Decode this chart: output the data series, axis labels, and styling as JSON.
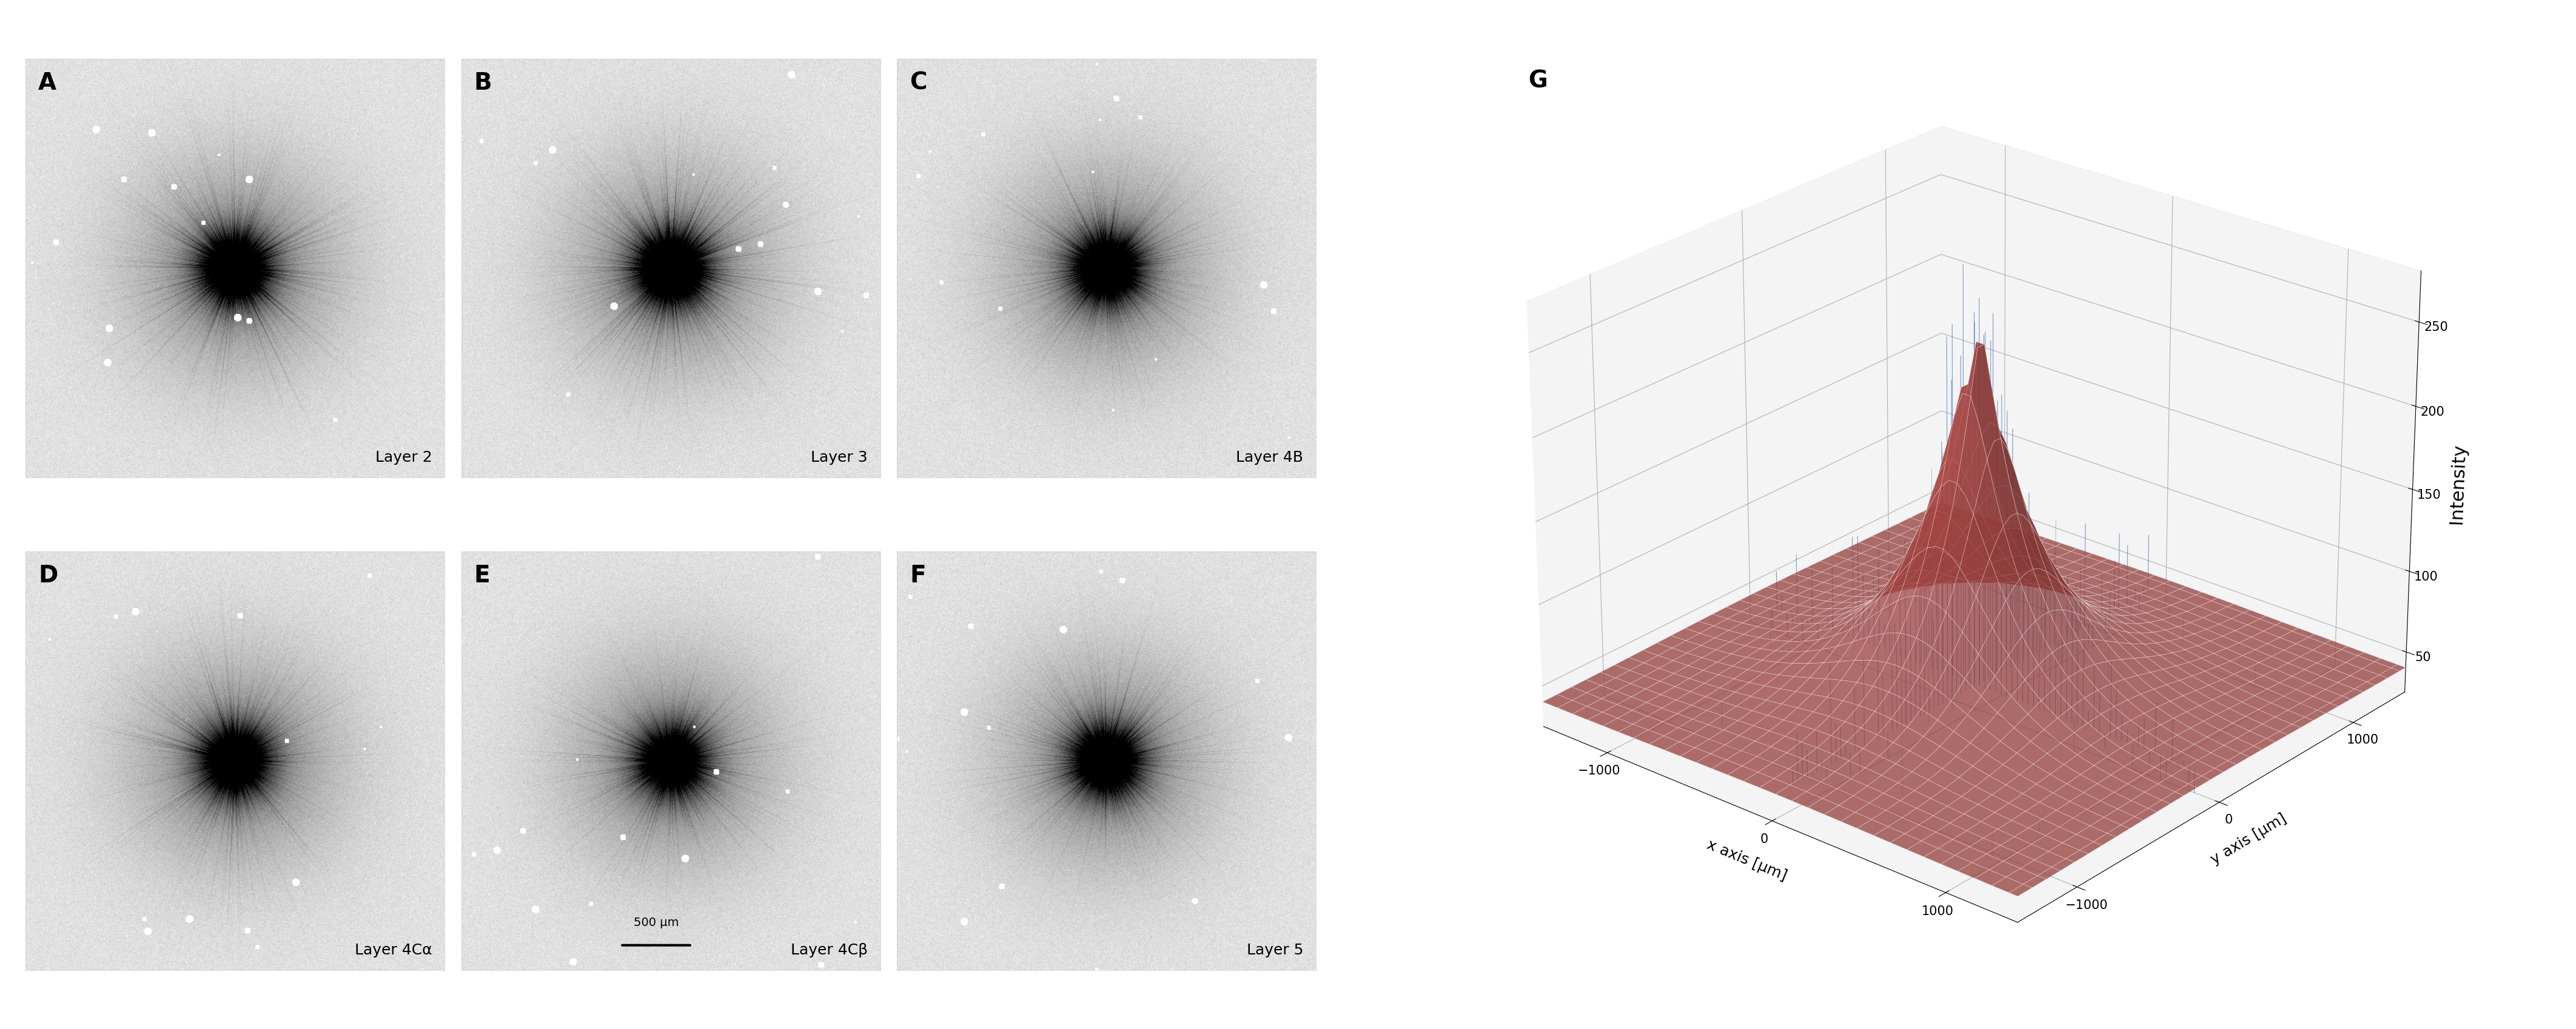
{
  "panel_labels": [
    "A",
    "B",
    "C",
    "D",
    "E",
    "F",
    "G"
  ],
  "layer_labels": [
    "Layer 2",
    "Layer 3",
    "Layer 4B",
    "Layer 4Cα",
    "Layer 4Cβ",
    "Layer 5"
  ],
  "scale_bar_panel": 4,
  "scale_bar_text": "500 μm",
  "plot3d_title": "G",
  "xlabel_3d": "x axis [μm]",
  "ylabel_3d": "y axis [μm]",
  "zlabel_3d": "Intensity",
  "xlim_3d": [
    -1400,
    1400
  ],
  "ylim_3d": [
    -1400,
    1400
  ],
  "zlim_3d": [
    25,
    280
  ],
  "zticks": [
    50,
    100,
    150,
    200,
    250
  ],
  "xticks": [
    -1000,
    0,
    1000
  ],
  "yticks": [
    -1000,
    0,
    1000
  ],
  "surface_color": "#c0504d",
  "noise_color": "#4472c4",
  "background_color": "#f0f0f0",
  "noise_baseline": 40,
  "noise_amplitude": 20,
  "peak_amplitude": 230,
  "sigma": 300,
  "n_grid": 60,
  "n_noise_points": 80,
  "figure_bg": "#ffffff"
}
